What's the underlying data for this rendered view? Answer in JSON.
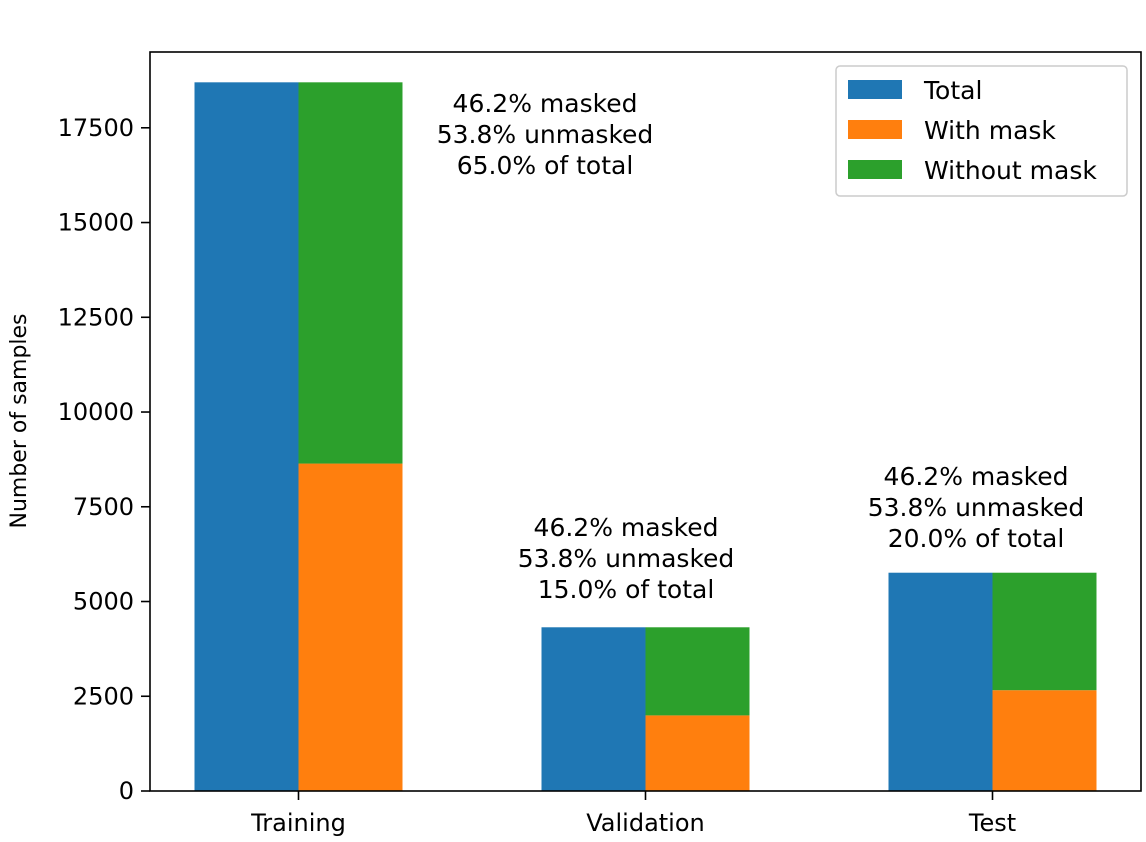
{
  "chart_data": {
    "type": "bar",
    "stacked_groups": true,
    "title": "",
    "xlabel": "",
    "ylabel": "Number of samples",
    "ylim": [
      0,
      19500
    ],
    "yticks": [
      0,
      2500,
      5000,
      7500,
      10000,
      12500,
      15000,
      17500
    ],
    "categories": [
      "Training",
      "Validation",
      "Test"
    ],
    "series": [
      {
        "name": "Total",
        "color": "#1f77b4",
        "values": [
          18700,
          4320,
          5760
        ]
      },
      {
        "name": "With mask",
        "color": "#ff7f0e",
        "values": [
          8640,
          1995,
          2660
        ]
      },
      {
        "name": "Without mask",
        "color": "#2ca02c",
        "values": [
          10060,
          2325,
          3100
        ]
      }
    ],
    "annotations": [
      {
        "category": "Training",
        "lines": [
          "46.2% masked",
          "53.8% unmasked",
          "65.0% of total"
        ]
      },
      {
        "category": "Validation",
        "lines": [
          "46.2% masked",
          "53.8% unmasked",
          "15.0% of total"
        ]
      },
      {
        "category": "Test",
        "lines": [
          "46.2% masked",
          "53.8% unmasked",
          "20.0% of total"
        ]
      }
    ],
    "legend_position": "top-right",
    "grid": false
  }
}
